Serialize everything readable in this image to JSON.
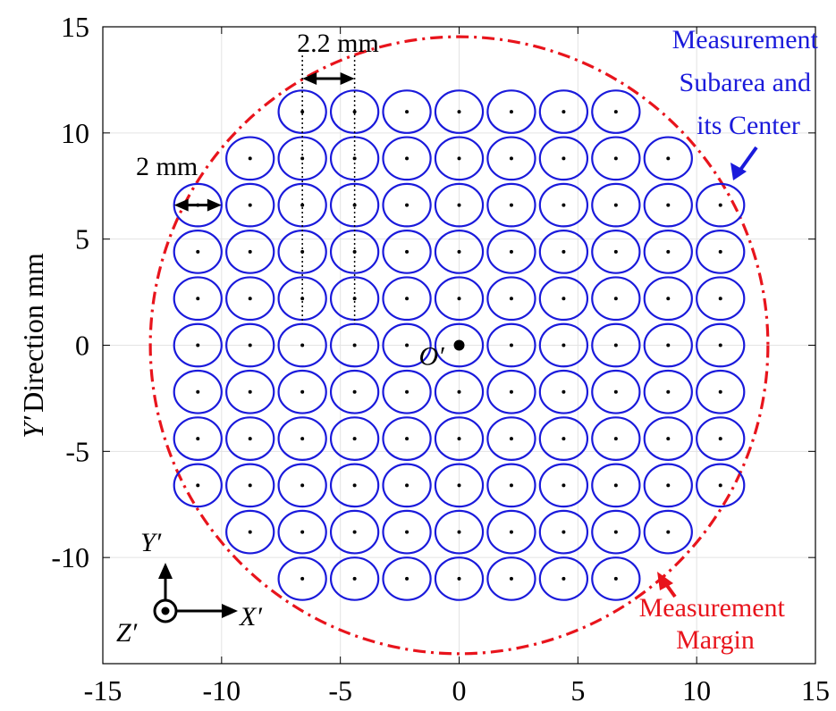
{
  "chart_data": {
    "type": "scatter",
    "xlabel": "",
    "ylabel_italic": "Y′",
    "ylabel_rest": "Direction mm",
    "xlim": [
      -15,
      15
    ],
    "ylim": [
      -15,
      15
    ],
    "grid": true,
    "x_ticks": [
      "-15",
      "-10",
      "-5",
      "0",
      "5",
      "10",
      "15"
    ],
    "y_ticks": [
      "15",
      "10",
      "5",
      "0",
      "-5",
      "-10"
    ],
    "subarea_diameter_mm": 2,
    "subarea_pitch_mm": 2.2,
    "margin_radius_mm": 13,
    "rows": [
      {
        "y": 11,
        "x_from": -6.6,
        "count": 7
      },
      {
        "y": 8.8,
        "x_from": -8.8,
        "count": 9
      },
      {
        "y": 6.6,
        "x_from": -11,
        "count": 11
      },
      {
        "y": 4.4,
        "x_from": -11,
        "count": 11
      },
      {
        "y": 2.2,
        "x_from": -11,
        "count": 11
      },
      {
        "y": 0,
        "x_from": -11,
        "count": 11
      },
      {
        "y": -2.2,
        "x_from": -11,
        "count": 11
      },
      {
        "y": -4.4,
        "x_from": -11,
        "count": 11
      },
      {
        "y": -6.6,
        "x_from": -11,
        "count": 11
      },
      {
        "y": -8.8,
        "x_from": -8.8,
        "count": 9
      },
      {
        "y": -11,
        "x_from": -6.6,
        "count": 7
      }
    ],
    "colors": {
      "subarea": "#1a1adb",
      "margin": "#e8141c",
      "arrow_blue": "#1a1adb",
      "arrow_red": "#e8141c"
    },
    "annotations": {
      "pitch_label": "2.2 mm",
      "diameter_label": "2 mm",
      "origin_label": "O′",
      "subarea_label": [
        "Measurement",
        "Subarea and",
        "its Center"
      ],
      "margin_label": [
        "Measurement",
        "Margin"
      ],
      "frame_x": "X′",
      "frame_y": "Y′",
      "frame_z": "Z′"
    }
  }
}
